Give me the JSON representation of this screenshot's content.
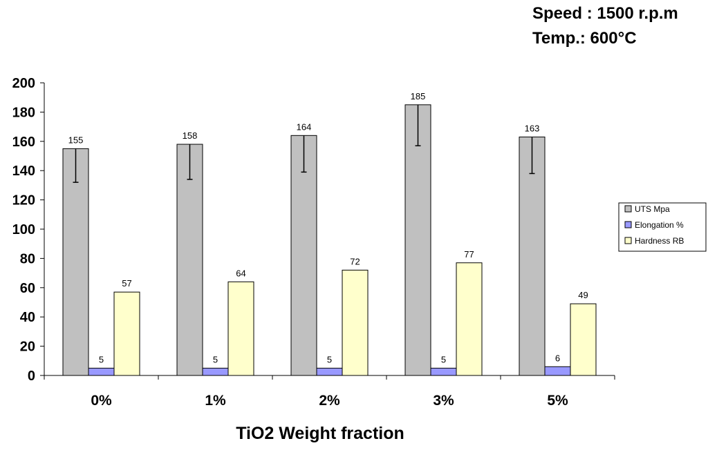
{
  "annotations": {
    "speed": "Speed : 1500 r.p.m",
    "temp": "Temp.:  600°C"
  },
  "chart_data": {
    "type": "bar",
    "title": "",
    "xlabel": "TiO2 Weight fraction",
    "ylabel": "",
    "categories": [
      "0%",
      "1%",
      "2%",
      "3%",
      "5%"
    ],
    "ylim": [
      0,
      200
    ],
    "yticks": [
      0,
      20,
      40,
      60,
      80,
      100,
      120,
      140,
      160,
      180,
      200
    ],
    "grid": false,
    "legend_position": "right",
    "series": [
      {
        "name": "UTS Mpa",
        "color": "#c0c0c0",
        "values": [
          155,
          158,
          164,
          185,
          163
        ],
        "error_bar_lower": [
          132,
          134,
          139,
          157,
          138
        ]
      },
      {
        "name": "Elongation  %",
        "color": "#9999ff",
        "values": [
          5,
          5,
          5,
          5,
          6
        ]
      },
      {
        "name": "Hardness RB",
        "color": "#ffffcc",
        "values": [
          57,
          64,
          72,
          77,
          49
        ]
      }
    ]
  }
}
